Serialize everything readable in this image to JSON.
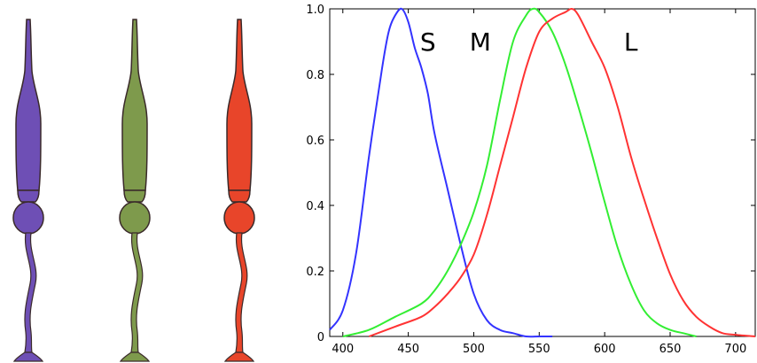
{
  "cones": [
    {
      "name": "S",
      "color": "#6e4fb5"
    },
    {
      "name": "M",
      "color": "#7e9a4c"
    },
    {
      "name": "L",
      "color": "#e8452a"
    }
  ],
  "chart_data": {
    "type": "line",
    "title": "",
    "xlabel": "",
    "ylabel": "",
    "xlim": [
      390,
      715
    ],
    "ylim": [
      0,
      1.0
    ],
    "xticks": [
      "400",
      "450",
      "500",
      "550",
      "600",
      "650",
      "700"
    ],
    "yticks": [
      "0",
      "0.2",
      "0.4",
      "0.6",
      "0.8",
      "1.0"
    ],
    "grid": false,
    "series": [
      {
        "name": "S",
        "color": "#3333ff",
        "x": [
          390,
          400,
          410,
          420,
          430,
          435,
          440,
          445,
          450,
          455,
          460,
          465,
          470,
          480,
          490,
          500,
          510,
          520,
          530,
          540,
          550,
          560
        ],
        "y": [
          0.02,
          0.08,
          0.25,
          0.55,
          0.82,
          0.93,
          0.98,
          1.0,
          0.96,
          0.88,
          0.82,
          0.74,
          0.62,
          0.45,
          0.28,
          0.13,
          0.05,
          0.02,
          0.01,
          0.0,
          0.0,
          0.0
        ]
      },
      {
        "name": "M",
        "color": "#33ee33",
        "x": [
          400,
          420,
          440,
          460,
          470,
          480,
          490,
          500,
          510,
          520,
          530,
          540,
          545,
          550,
          560,
          570,
          580,
          590,
          600,
          610,
          620,
          630,
          640,
          650,
          660,
          670
        ],
        "y": [
          0.0,
          0.02,
          0.06,
          0.1,
          0.14,
          0.2,
          0.28,
          0.38,
          0.52,
          0.72,
          0.9,
          0.98,
          1.0,
          0.99,
          0.93,
          0.83,
          0.7,
          0.56,
          0.41,
          0.27,
          0.16,
          0.08,
          0.04,
          0.02,
          0.01,
          0.0
        ]
      },
      {
        "name": "L",
        "color": "#ff3333",
        "x": [
          420,
          440,
          460,
          470,
          480,
          490,
          500,
          510,
          520,
          530,
          540,
          550,
          560,
          570,
          575,
          580,
          590,
          600,
          610,
          620,
          630,
          640,
          650,
          660,
          670,
          680,
          690,
          700,
          715
        ],
        "y": [
          0.0,
          0.03,
          0.06,
          0.09,
          0.13,
          0.18,
          0.25,
          0.37,
          0.52,
          0.67,
          0.82,
          0.93,
          0.97,
          0.99,
          1.0,
          0.98,
          0.9,
          0.82,
          0.7,
          0.55,
          0.42,
          0.3,
          0.19,
          0.11,
          0.06,
          0.03,
          0.01,
          0.005,
          0.0
        ]
      }
    ],
    "annotations": [
      {
        "text": "S",
        "x": 465,
        "y": 0.9
      },
      {
        "text": "M",
        "x": 505,
        "y": 0.9
      },
      {
        "text": "L",
        "x": 620,
        "y": 0.9
      }
    ]
  }
}
